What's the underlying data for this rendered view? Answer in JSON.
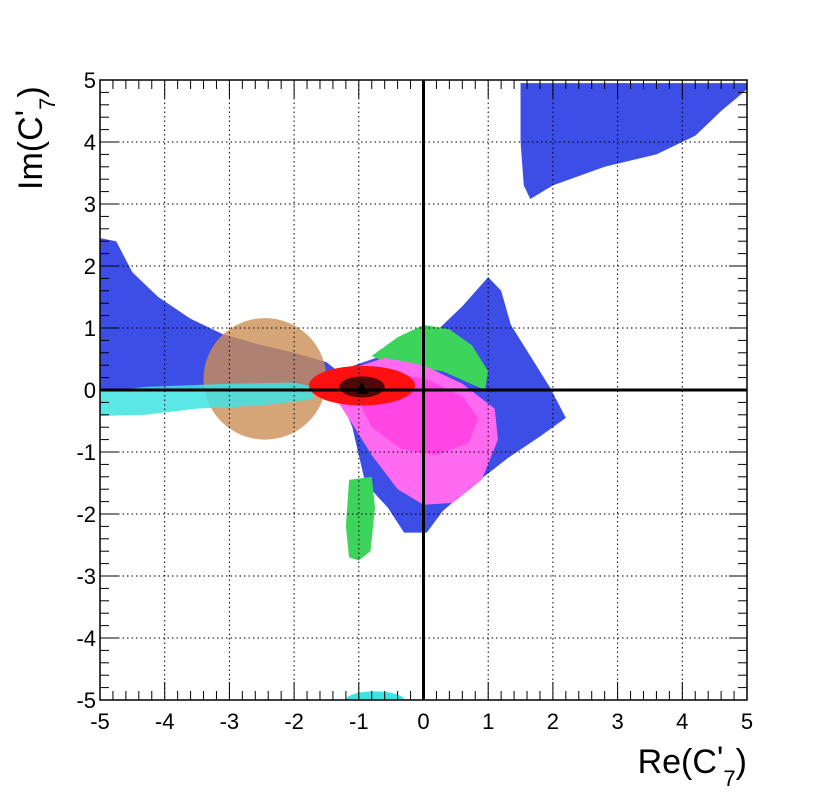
{
  "chart_data": {
    "type": "contour",
    "title": "",
    "xlabel": {
      "main": "Re(C",
      "prime": "'",
      "sub": "7",
      "close": ")"
    },
    "ylabel": {
      "main": "Im(C",
      "prime": "'",
      "sub": "7",
      "close": ")"
    },
    "xlim": [
      -5,
      5
    ],
    "ylim": [
      -5,
      5
    ],
    "xticks": [
      -5,
      -4,
      -3,
      -2,
      -1,
      0,
      1,
      2,
      3,
      4,
      5
    ],
    "yticks": [
      -5,
      -4,
      -3,
      -2,
      -1,
      0,
      1,
      2,
      3,
      4,
      5
    ],
    "xtick_labels": [
      "-5",
      "-4",
      "-3",
      "-2",
      "-1",
      "0",
      "1",
      "2",
      "3",
      "4",
      "5"
    ],
    "ytick_labels": [
      "-5",
      "-4",
      "-3",
      "-2",
      "-1",
      "0",
      "1",
      "2",
      "3",
      "4",
      "5"
    ],
    "grid": true,
    "best_fit_point": {
      "x": -0.95,
      "y": 0.02
    },
    "regions": [
      {
        "name": "blue-top-right",
        "color": "#3c4ee6",
        "opacity": 1,
        "points": [
          [
            1.5,
            4.95
          ],
          [
            5.0,
            4.95
          ],
          [
            5.0,
            4.85
          ],
          [
            4.6,
            4.5
          ],
          [
            4.2,
            4.1
          ],
          [
            3.6,
            3.8
          ],
          [
            2.8,
            3.6
          ],
          [
            2.0,
            3.3
          ],
          [
            1.65,
            3.08
          ],
          [
            1.55,
            3.3
          ],
          [
            1.5,
            4.0
          ]
        ]
      },
      {
        "name": "blue-left-band",
        "color": "#3c4ee6",
        "opacity": 1,
        "points": [
          [
            -5.0,
            2.45
          ],
          [
            -4.75,
            2.4
          ],
          [
            -4.5,
            1.9
          ],
          [
            -4.1,
            1.5
          ],
          [
            -3.6,
            1.15
          ],
          [
            -3.1,
            0.9
          ],
          [
            -2.6,
            0.75
          ],
          [
            -2.0,
            0.6
          ],
          [
            -1.5,
            0.45
          ],
          [
            -1.2,
            0.2
          ],
          [
            -1.2,
            0.0
          ],
          [
            -1.6,
            -0.05
          ],
          [
            -2.5,
            -0.02
          ],
          [
            -3.5,
            0.0
          ],
          [
            -5.0,
            0.0
          ]
        ]
      },
      {
        "name": "blue-central",
        "color": "#3c4ee6",
        "opacity": 1,
        "points": [
          [
            -1.2,
            0.35
          ],
          [
            -0.5,
            0.6
          ],
          [
            0.2,
            0.95
          ],
          [
            0.6,
            1.35
          ],
          [
            1.0,
            1.82
          ],
          [
            1.2,
            1.6
          ],
          [
            1.35,
            1.05
          ],
          [
            1.65,
            0.55
          ],
          [
            1.95,
            0.05
          ],
          [
            2.2,
            -0.45
          ],
          [
            1.8,
            -0.75
          ],
          [
            1.3,
            -1.1
          ],
          [
            0.75,
            -1.55
          ],
          [
            0.3,
            -1.95
          ],
          [
            0.05,
            -2.3
          ],
          [
            -0.3,
            -2.3
          ],
          [
            -0.55,
            -1.9
          ],
          [
            -0.9,
            -1.5
          ],
          [
            -1.1,
            -0.6
          ],
          [
            -1.3,
            -0.1
          ]
        ]
      },
      {
        "name": "tan-ellipse",
        "type": "ellipse",
        "cx": -2.45,
        "cy": 0.18,
        "rx": 0.95,
        "ry": 0.98,
        "color": "#cc8f55",
        "opacity": 0.8
      },
      {
        "name": "cyan-band",
        "color": "#3fe3e3",
        "opacity": 0.85,
        "points": [
          [
            -5.0,
            -0.03
          ],
          [
            -4.3,
            0.05
          ],
          [
            -3.0,
            0.1
          ],
          [
            -2.0,
            0.12
          ],
          [
            -1.7,
            0.05
          ],
          [
            -1.7,
            -0.15
          ],
          [
            -2.5,
            -0.25
          ],
          [
            -3.5,
            -0.3
          ],
          [
            -4.3,
            -0.4
          ],
          [
            -5.0,
            -0.42
          ]
        ]
      },
      {
        "name": "cyan-bottom-blob",
        "type": "ellipse",
        "cx": -0.75,
        "cy": -5.0,
        "rx": 0.45,
        "ry": 0.14,
        "color": "#3fe3e3",
        "opacity": 1
      },
      {
        "name": "green-upper",
        "color": "#3cd45a",
        "opacity": 1,
        "points": [
          [
            -0.8,
            0.55
          ],
          [
            -0.4,
            0.85
          ],
          [
            0.0,
            1.05
          ],
          [
            0.4,
            0.98
          ],
          [
            0.75,
            0.72
          ],
          [
            1.0,
            0.3
          ],
          [
            0.95,
            0.0
          ],
          [
            0.3,
            0.3
          ],
          [
            -0.6,
            0.45
          ]
        ]
      },
      {
        "name": "green-lower-strip",
        "color": "#3cd45a",
        "opacity": 1,
        "points": [
          [
            -1.15,
            -1.45
          ],
          [
            -0.8,
            -1.4
          ],
          [
            -0.75,
            -1.9
          ],
          [
            -0.82,
            -2.6
          ],
          [
            -1.0,
            -2.75
          ],
          [
            -1.15,
            -2.7
          ],
          [
            -1.2,
            -2.2
          ]
        ]
      },
      {
        "name": "magenta-light",
        "color": "#ff6af0",
        "opacity": 1,
        "points": [
          [
            -1.35,
            -0.15
          ],
          [
            -1.1,
            0.35
          ],
          [
            -0.6,
            0.52
          ],
          [
            0.0,
            0.4
          ],
          [
            0.6,
            0.1
          ],
          [
            1.1,
            -0.3
          ],
          [
            1.15,
            -0.8
          ],
          [
            0.9,
            -1.45
          ],
          [
            0.45,
            -1.82
          ],
          [
            0.0,
            -1.85
          ],
          [
            -0.4,
            -1.6
          ],
          [
            -0.8,
            -1.05
          ],
          [
            -1.1,
            -0.55
          ]
        ]
      },
      {
        "name": "magenta-dark",
        "color": "#ff3fe3",
        "opacity": 0.85,
        "points": [
          [
            -1.0,
            -0.2
          ],
          [
            -0.6,
            0.25
          ],
          [
            0.0,
            0.2
          ],
          [
            0.6,
            -0.1
          ],
          [
            0.85,
            -0.45
          ],
          [
            0.7,
            -0.85
          ],
          [
            0.2,
            -1.05
          ],
          [
            -0.35,
            -0.95
          ],
          [
            -0.8,
            -0.6
          ]
        ]
      },
      {
        "name": "red-core",
        "type": "ellipse",
        "cx": -0.95,
        "cy": 0.07,
        "rx": 0.82,
        "ry": 0.32,
        "color": "#ff1010",
        "opacity": 1
      },
      {
        "name": "dark-red-core",
        "type": "ellipse",
        "cx": -0.95,
        "cy": 0.05,
        "rx": 0.35,
        "ry": 0.17,
        "color": "#4e0808",
        "opacity": 1
      }
    ]
  }
}
